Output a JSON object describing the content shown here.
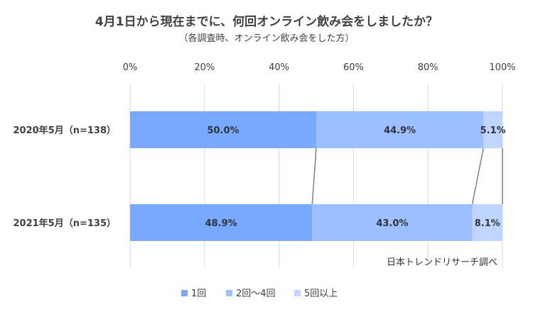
{
  "chart_data": {
    "type": "bar",
    "orientation": "horizontal",
    "stacked": true,
    "title": "4月1日から現在までに、何回オンライン飲み会をしましたか？",
    "subtitle": "（各調査時、オンライン飲み会をした方）",
    "categories": [
      "2020年5月（n=138）",
      "2021年5月（n=135）"
    ],
    "series": [
      {
        "name": "1回",
        "color": "#78A9FF",
        "values": [
          50.0,
          48.9
        ]
      },
      {
        "name": "2回～4回",
        "color": "#9CBFFF",
        "values": [
          44.9,
          43.0
        ]
      },
      {
        "name": "5回以上",
        "color": "#BED5FF",
        "values": [
          5.1,
          8.1
        ]
      }
    ],
    "data_labels": [
      [
        "50.0%",
        "48.9%"
      ],
      [
        "44.9%",
        "43.0%"
      ],
      [
        "5.1%",
        "8.1%"
      ]
    ],
    "xlim": [
      0,
      100
    ],
    "xticks": [
      "0%",
      "20%",
      "40%",
      "60%",
      "80%",
      "100%"
    ],
    "grid": true,
    "series_lines": true,
    "legend_position": "bottom",
    "source_note": "日本トレンドリサーチ調べ"
  }
}
